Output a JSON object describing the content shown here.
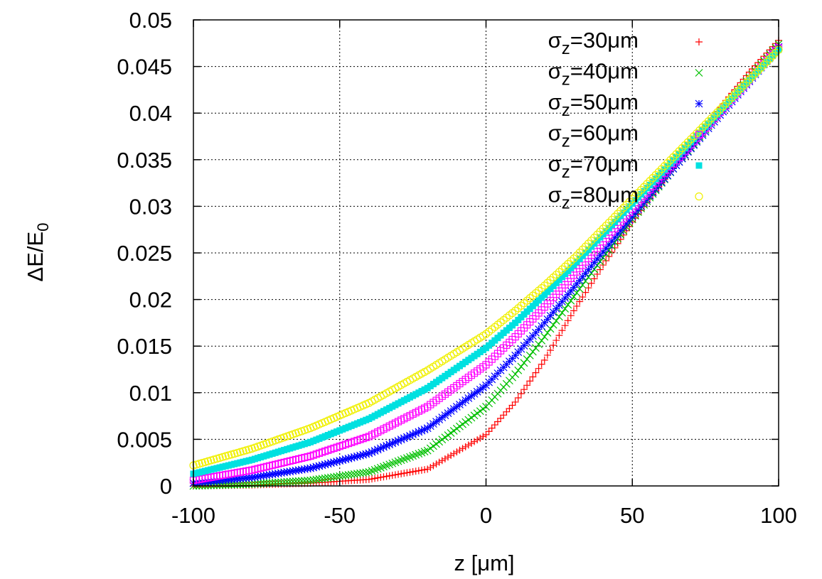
{
  "chart_data": {
    "type": "scatter",
    "xlabel": "z [μm]",
    "ylabel": "ΔE/E",
    "ylabel_sub": "0",
    "xlim": [
      -100,
      100
    ],
    "ylim": [
      0,
      0.05
    ],
    "xticks": [
      -100,
      -50,
      0,
      50,
      100
    ],
    "xtick_labels": [
      "-100",
      "-50",
      "0",
      "50",
      "100"
    ],
    "yticks": [
      0,
      0.005,
      0.01,
      0.015,
      0.02,
      0.025,
      0.03,
      0.035,
      0.04,
      0.045,
      0.05
    ],
    "ytick_labels": [
      "0",
      "0.005",
      "0.01",
      "0.015",
      "0.02",
      "0.025",
      "0.03",
      "0.035",
      "0.04",
      "0.045",
      "0.05"
    ],
    "grid": true,
    "legend_position": "top-right",
    "series": [
      {
        "name_main": "σ",
        "name_sub": "z",
        "name_tail": "=30μm",
        "marker": "plus",
        "color": "#ff0000",
        "x": [
          -100,
          -80,
          -60,
          -40,
          -20,
          0,
          10,
          20,
          30,
          40,
          50,
          60,
          70,
          80,
          90,
          100
        ],
        "y": [
          0.0,
          0.0001,
          0.0003,
          0.0007,
          0.0018,
          0.0055,
          0.009,
          0.0135,
          0.0188,
          0.0237,
          0.0283,
          0.0325,
          0.0366,
          0.0406,
          0.0444,
          0.0478
        ]
      },
      {
        "name_main": "σ",
        "name_sub": "z",
        "name_tail": "=40μm",
        "marker": "cross",
        "color": "#00c000",
        "x": [
          -100,
          -80,
          -60,
          -40,
          -20,
          0,
          10,
          20,
          30,
          40,
          50,
          60,
          70,
          80,
          90,
          100
        ],
        "y": [
          0.0,
          0.0002,
          0.0006,
          0.0015,
          0.0038,
          0.0085,
          0.012,
          0.016,
          0.0203,
          0.0245,
          0.0286,
          0.0325,
          0.0363,
          0.0401,
          0.0438,
          0.0474
        ]
      },
      {
        "name_main": "σ",
        "name_sub": "z",
        "name_tail": "=50μm",
        "marker": "star",
        "color": "#0000ff",
        "x": [
          -100,
          -80,
          -60,
          -40,
          -20,
          0,
          10,
          20,
          30,
          40,
          50,
          60,
          70,
          80,
          90,
          100
        ],
        "y": [
          0.0003,
          0.0009,
          0.0019,
          0.0035,
          0.0062,
          0.0108,
          0.014,
          0.0175,
          0.0213,
          0.0251,
          0.0289,
          0.0326,
          0.0362,
          0.0398,
          0.0434,
          0.0471
        ]
      },
      {
        "name_main": "σ",
        "name_sub": "z",
        "name_tail": "=60μm",
        "marker": "open-square",
        "color": "#ff00ff",
        "x": [
          -100,
          -80,
          -60,
          -40,
          -20,
          0,
          10,
          20,
          30,
          40,
          50,
          60,
          70,
          80,
          90,
          100
        ],
        "y": [
          0.0006,
          0.0017,
          0.0032,
          0.0053,
          0.0085,
          0.013,
          0.016,
          0.0192,
          0.0226,
          0.0262,
          0.0297,
          0.0332,
          0.0366,
          0.0401,
          0.0435,
          0.047
        ]
      },
      {
        "name_main": "σ",
        "name_sub": "z",
        "name_tail": "=70μm",
        "marker": "filled-square",
        "color": "#00e0e0",
        "x": [
          -100,
          -80,
          -60,
          -40,
          -20,
          0,
          10,
          20,
          30,
          40,
          50,
          60,
          70,
          80,
          90,
          100
        ],
        "y": [
          0.0013,
          0.0028,
          0.0047,
          0.0072,
          0.0105,
          0.0148,
          0.0175,
          0.0205,
          0.0237,
          0.027,
          0.0303,
          0.0336,
          0.0369,
          0.0402,
          0.0435,
          0.0468
        ]
      },
      {
        "name_main": "σ",
        "name_sub": "z",
        "name_tail": "=80μm",
        "marker": "open-circle",
        "color": "#f0f000",
        "x": [
          -100,
          -80,
          -60,
          -40,
          -20,
          0,
          10,
          20,
          30,
          40,
          50,
          60,
          70,
          80,
          90,
          100
        ],
        "y": [
          0.0022,
          0.004,
          0.0062,
          0.0089,
          0.0124,
          0.0163,
          0.0188,
          0.0215,
          0.0244,
          0.0276,
          0.0308,
          0.034,
          0.0372,
          0.0404,
          0.0436,
          0.0468
        ]
      }
    ]
  }
}
